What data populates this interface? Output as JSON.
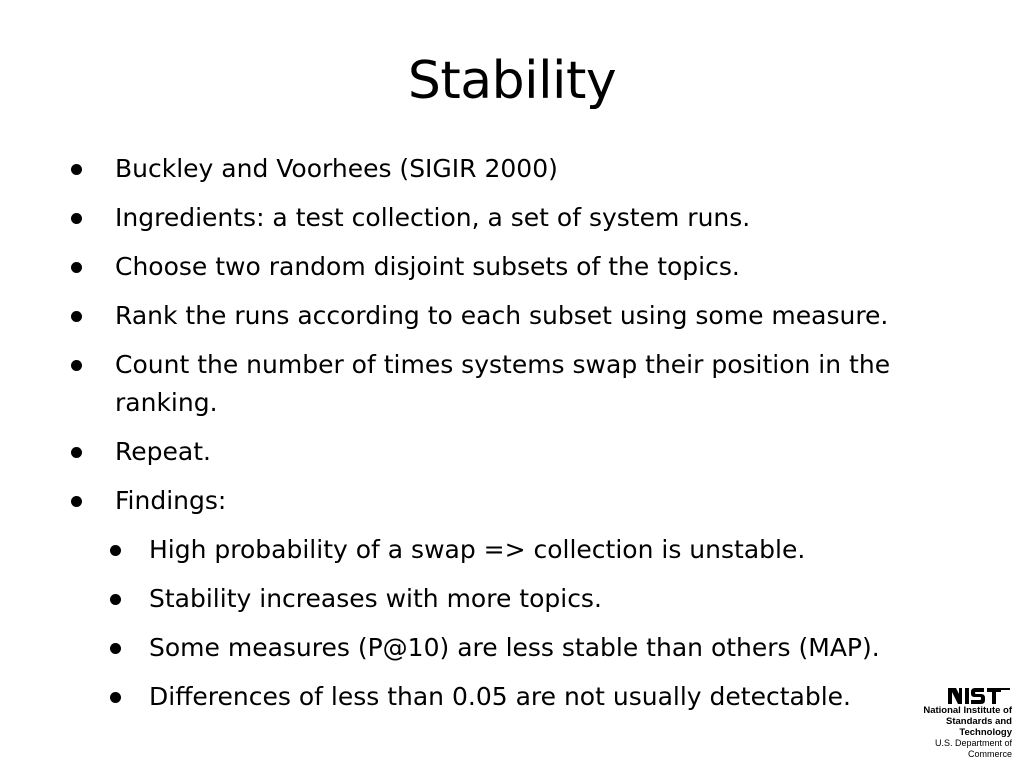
{
  "title": "Stability",
  "bullets": [
    {
      "level": 1,
      "text": "Buckley and Voorhees (SIGIR 2000)"
    },
    {
      "level": 1,
      "text": "Ingredients: a test collection, a set of system runs."
    },
    {
      "level": 1,
      "text": "Choose two random disjoint subsets of the topics."
    },
    {
      "level": 1,
      "text": "Rank the runs according to each subset using some measure."
    },
    {
      "level": 1,
      "text": "Count the number of times systems swap their position in the ranking."
    },
    {
      "level": 1,
      "text": "Repeat."
    },
    {
      "level": 1,
      "text": "Findings:"
    },
    {
      "level": 2,
      "text": "High probability of a swap => collection is unstable."
    },
    {
      "level": 2,
      "text": "Stability increases with more topics."
    },
    {
      "level": 2,
      "text": "Some measures (P@10) are less stable than others (MAP)."
    },
    {
      "level": 2,
      "text": "Differences of less than 0.05 are not usually detectable."
    }
  ],
  "logo": {
    "wordmark": "NIST",
    "line1": "National Institute of",
    "line2": "Standards and Technology",
    "line3": "U.S. Department of Commerce"
  },
  "colors": {
    "text": "#000000",
    "background": "#ffffff"
  }
}
